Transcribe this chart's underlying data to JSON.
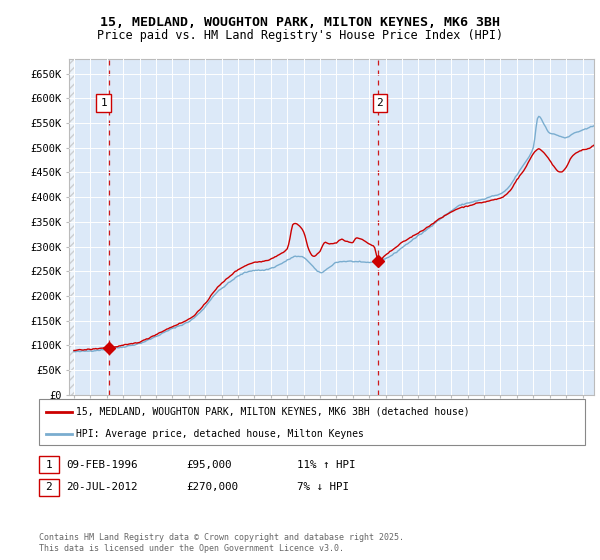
{
  "title_line1": "15, MEDLAND, WOUGHTON PARK, MILTON KEYNES, MK6 3BH",
  "title_line2": "Price paid vs. HM Land Registry's House Price Index (HPI)",
  "ylim": [
    0,
    680000
  ],
  "yticks": [
    0,
    50000,
    100000,
    150000,
    200000,
    250000,
    300000,
    350000,
    400000,
    450000,
    500000,
    550000,
    600000,
    650000
  ],
  "ytick_labels": [
    "£0",
    "£50K",
    "£100K",
    "£150K",
    "£200K",
    "£250K",
    "£300K",
    "£350K",
    "£400K",
    "£450K",
    "£500K",
    "£550K",
    "£600K",
    "£650K"
  ],
  "xlim_start": 1993.7,
  "xlim_end": 2025.7,
  "background_color": "#dce9f8",
  "grid_color": "#ffffff",
  "sale1_date": 1996.11,
  "sale1_price": 95000,
  "sale2_date": 2012.55,
  "sale2_price": 270000,
  "legend_line1": "15, MEDLAND, WOUGHTON PARK, MILTON KEYNES, MK6 3BH (detached house)",
  "legend_line2": "HPI: Average price, detached house, Milton Keynes",
  "note1_date": "09-FEB-1996",
  "note1_price": "£95,000",
  "note1_hpi": "11% ↑ HPI",
  "note2_date": "20-JUL-2012",
  "note2_price": "£270,000",
  "note2_hpi": "7% ↓ HPI",
  "footer": "Contains HM Land Registry data © Crown copyright and database right 2025.\nThis data is licensed under the Open Government Licence v3.0.",
  "line_red_color": "#cc0000",
  "line_blue_color": "#7aadcf",
  "marker_color": "#cc0000"
}
